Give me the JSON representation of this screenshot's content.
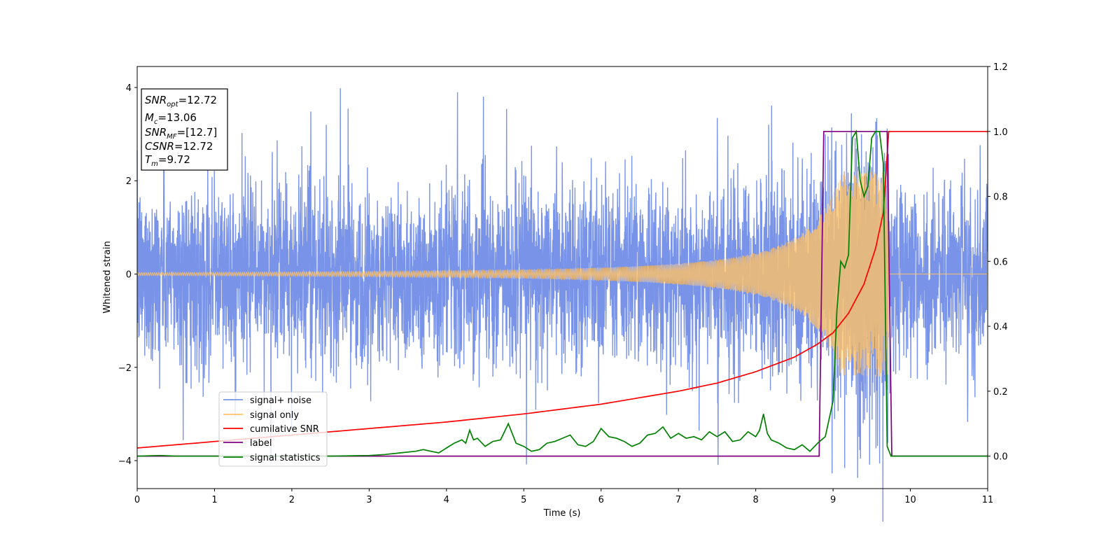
{
  "chart_data": {
    "type": "line",
    "xlabel": "Time (s)",
    "ylabel": "Whitened strain",
    "xlim": [
      0,
      11
    ],
    "ylim": [
      -4.6,
      4.45
    ],
    "y2lim": [
      -0.1,
      1.2
    ],
    "xticks": [
      0,
      1,
      2,
      3,
      4,
      5,
      6,
      7,
      8,
      9,
      10,
      11
    ],
    "yticks": [
      -4,
      -2,
      0,
      2,
      4
    ],
    "y2ticks": [
      0.0,
      0.2,
      0.4,
      0.6,
      0.8,
      1.0,
      1.2
    ],
    "legend_position": "lower-left",
    "annotation": {
      "lines": [
        {
          "var": "SNR",
          "sub": "opt",
          "value": "=12.72"
        },
        {
          "var": "M",
          "sub": "c",
          "value": "=13.06"
        },
        {
          "var": "SNR",
          "sub": "MF",
          "value": "=[12.7]"
        },
        {
          "var": "CSNR",
          "sub": "",
          "value": "=12.72"
        },
        {
          "var": "T",
          "sub": "m",
          "value": "=9.72"
        }
      ]
    },
    "series": [
      {
        "name": "signal+ noise",
        "color": "#7893e8",
        "axis": "left",
        "description": "noise std ~1.0, spikes up to ~4"
      },
      {
        "name": "signal only",
        "color": "#ffc266",
        "axis": "left",
        "chirp_end": 9.72,
        "final_amplitude": 2.2
      },
      {
        "name": "cumilative SNR",
        "color": "#ff0000",
        "axis": "right",
        "x": [
          0,
          1,
          2,
          3,
          4,
          5,
          6,
          7,
          7.5,
          8,
          8.5,
          8.8,
          9.0,
          9.2,
          9.4,
          9.55,
          9.65,
          9.72,
          11
        ],
        "y": [
          0.025,
          0.045,
          0.065,
          0.085,
          0.105,
          0.13,
          0.16,
          0.2,
          0.225,
          0.26,
          0.305,
          0.345,
          0.38,
          0.44,
          0.53,
          0.64,
          0.75,
          1.0,
          1.0
        ]
      },
      {
        "name": "label",
        "color": "#800080",
        "axis": "right",
        "x": [
          0,
          8.82,
          8.88,
          9.7,
          9.76,
          11
        ],
        "y": [
          0,
          0,
          1,
          1,
          0,
          0
        ]
      },
      {
        "name": "signal statistics",
        "color": "#008000",
        "axis": "right",
        "x": [
          0,
          0.3,
          0.5,
          1.0,
          2.0,
          2.5,
          3.0,
          3.2,
          3.4,
          3.6,
          3.7,
          3.8,
          3.9,
          4.0,
          4.1,
          4.2,
          4.25,
          4.3,
          4.35,
          4.4,
          4.5,
          4.6,
          4.7,
          4.8,
          4.9,
          5.0,
          5.1,
          5.2,
          5.3,
          5.4,
          5.5,
          5.6,
          5.7,
          5.8,
          5.9,
          6.0,
          6.1,
          6.2,
          6.3,
          6.4,
          6.5,
          6.6,
          6.7,
          6.8,
          6.9,
          7.0,
          7.1,
          7.2,
          7.3,
          7.4,
          7.5,
          7.6,
          7.7,
          7.8,
          7.9,
          8.0,
          8.05,
          8.1,
          8.15,
          8.2,
          8.3,
          8.4,
          8.5,
          8.6,
          8.7,
          8.8,
          8.9,
          9.0,
          9.05,
          9.1,
          9.15,
          9.2,
          9.25,
          9.3,
          9.35,
          9.4,
          9.45,
          9.5,
          9.55,
          9.6,
          9.65,
          9.7,
          9.75,
          9.8,
          11
        ],
        "y": [
          0.0,
          0.002,
          0.0,
          0.0,
          0.0,
          0.0,
          0.002,
          0.005,
          0.01,
          0.015,
          0.02,
          0.015,
          0.01,
          0.025,
          0.04,
          0.05,
          0.04,
          0.08,
          0.05,
          0.055,
          0.03,
          0.045,
          0.05,
          0.1,
          0.04,
          0.03,
          0.015,
          0.02,
          0.04,
          0.045,
          0.055,
          0.065,
          0.035,
          0.03,
          0.045,
          0.085,
          0.06,
          0.055,
          0.045,
          0.03,
          0.04,
          0.065,
          0.07,
          0.09,
          0.055,
          0.07,
          0.055,
          0.06,
          0.05,
          0.075,
          0.06,
          0.075,
          0.045,
          0.05,
          0.075,
          0.06,
          0.08,
          0.13,
          0.07,
          0.05,
          0.04,
          0.025,
          0.02,
          0.035,
          0.015,
          0.04,
          0.06,
          0.17,
          0.45,
          0.6,
          0.58,
          0.62,
          0.98,
          1.0,
          0.85,
          0.8,
          0.83,
          0.98,
          1.0,
          1.0,
          0.9,
          0.03,
          0.0,
          0.0,
          0.0
        ]
      }
    ]
  }
}
